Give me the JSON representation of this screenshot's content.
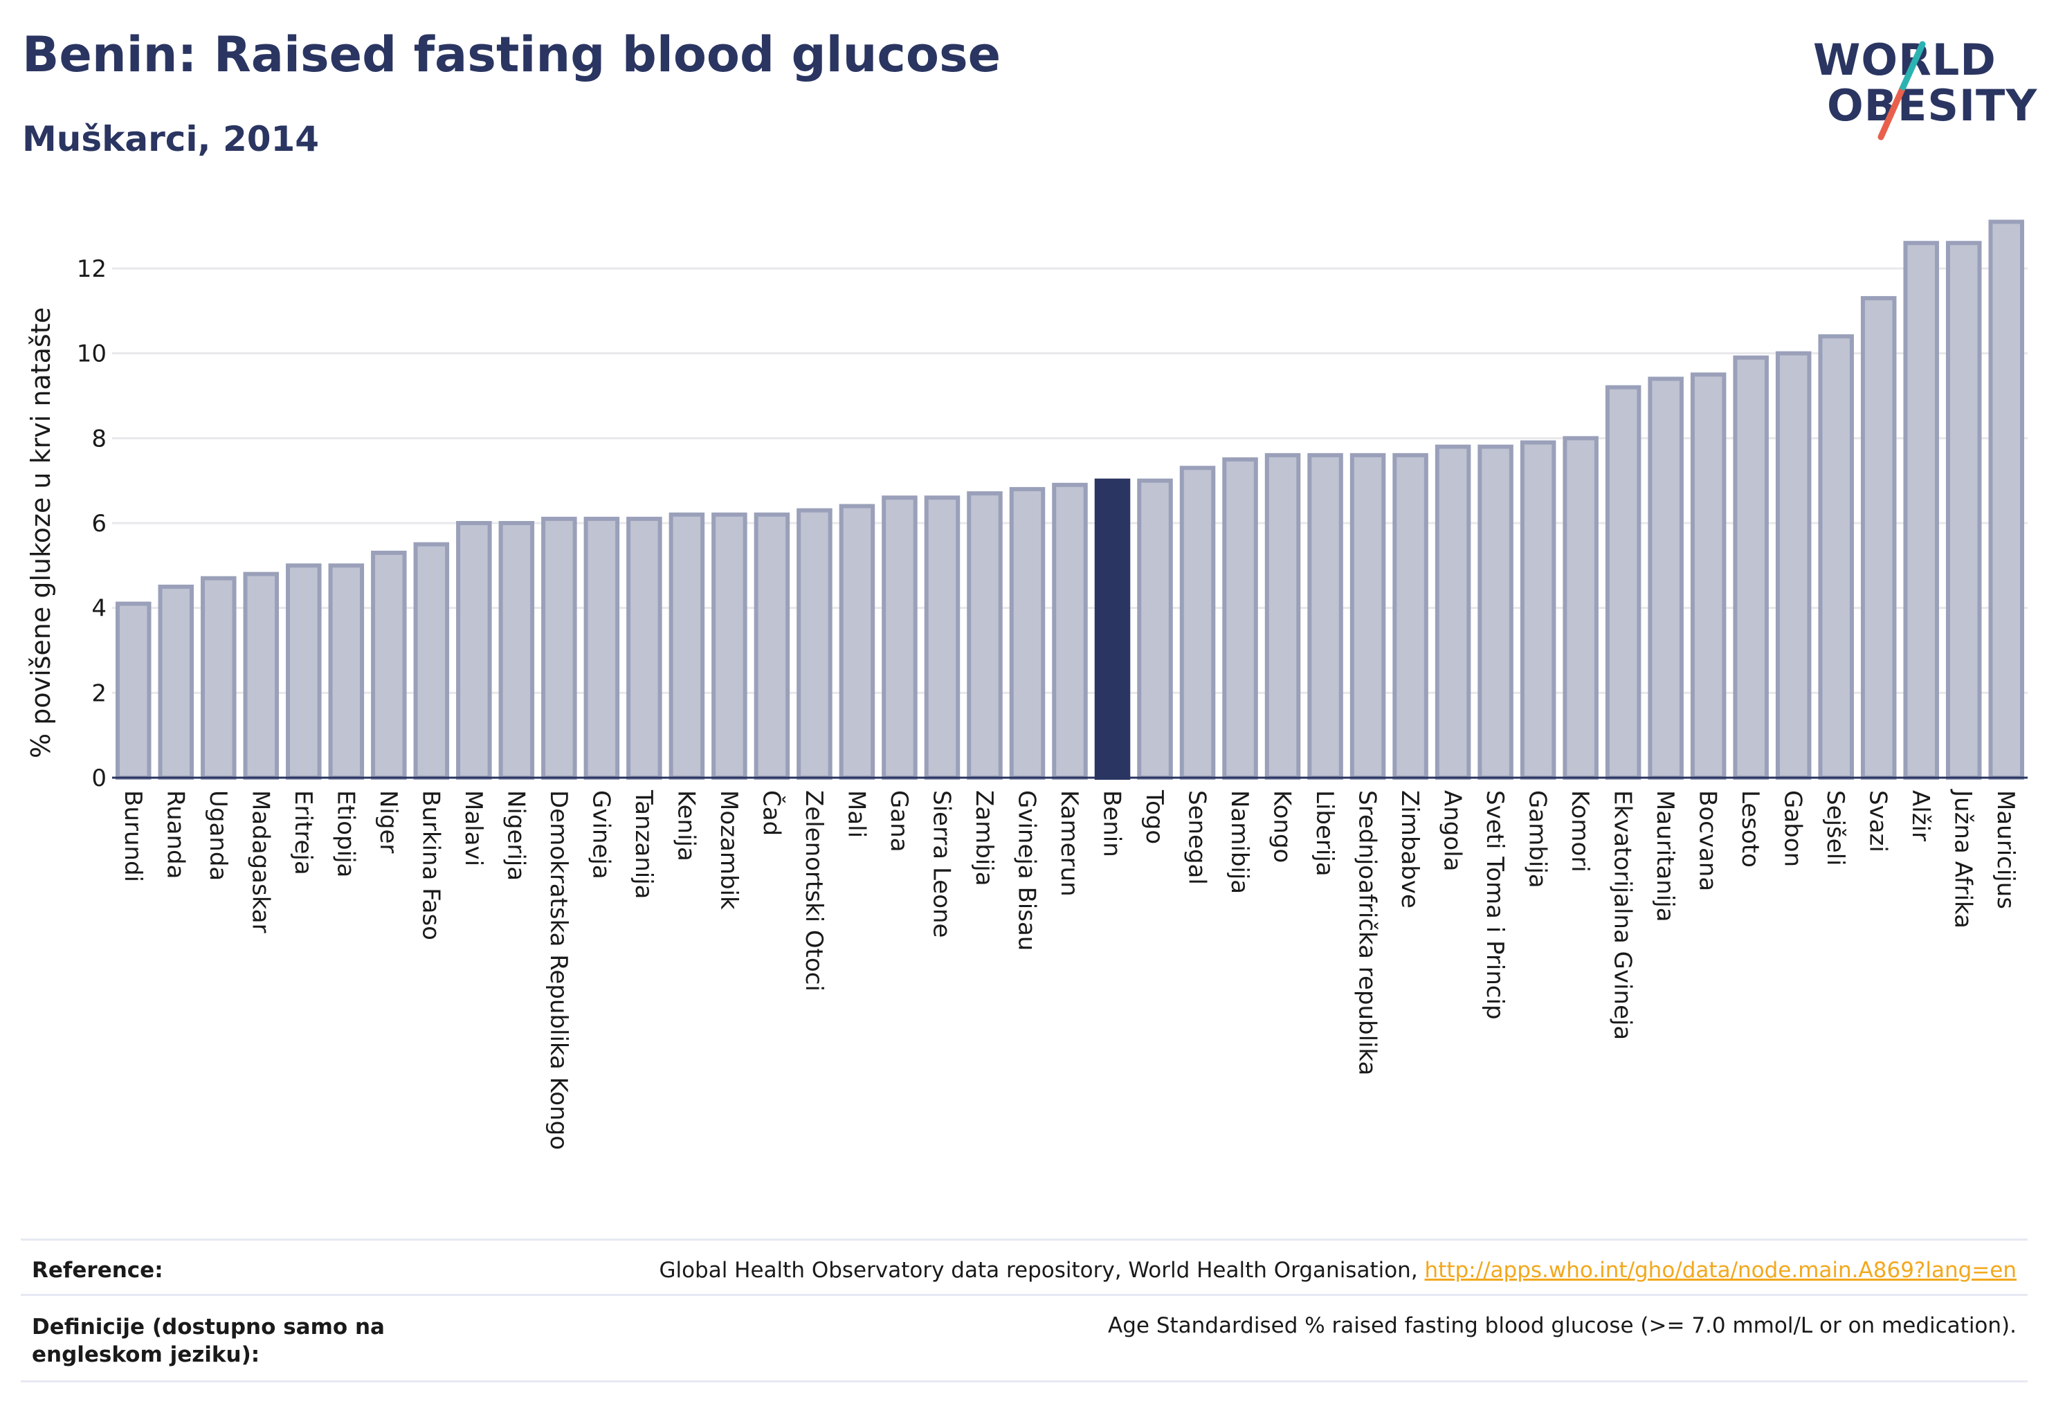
{
  "title": "Benin: Raised fasting blood glucose",
  "subtitle": "Muškarci, 2014",
  "logo": {
    "line1": "WORLD",
    "line2": "OBESITY",
    "accent_colors": [
      "#2bb3b1",
      "#e8604c"
    ]
  },
  "colors": {
    "bar": "#bfc3d2",
    "bar_stroke": "#9aa0b9",
    "highlight": "#2a3561",
    "grid": "#e8e8ec",
    "link": "#f2a81d"
  },
  "chart_data": {
    "type": "bar",
    "ylabel": "% povišene glukoze u krvi natašte",
    "ylim": [
      0,
      13.5
    ],
    "yticks": [
      0,
      2,
      4,
      6,
      8,
      10,
      12
    ],
    "grid": true,
    "highlight": "Benin",
    "categories": [
      "Burundi",
      "Ruanda",
      "Uganda",
      "Madagaskar",
      "Eritreja",
      "Etiopija",
      "Niger",
      "Burkina Faso",
      "Malavi",
      "Nigerija",
      "Demokratska Republika Kongo",
      "Gvineja",
      "Tanzanija",
      "Kenija",
      "Mozambik",
      "Čad",
      "Zelenortski Otoci",
      "Mali",
      "Gana",
      "Sierra Leone",
      "Zambija",
      "Gvineja Bisau",
      "Kamerun",
      "Benin",
      "Togo",
      "Senegal",
      "Namibija",
      "Kongo",
      "Liberija",
      "Srednjoafrička republika",
      "Zimbabve",
      "Angola",
      "Sveti Toma i Princip",
      "Gambija",
      "Komori",
      "Ekvatorijalna Gvineja",
      "Mauritanija",
      "Bocvana",
      "Lesoto",
      "Gabon",
      "Sejšeli",
      "Svazi",
      "Alžir",
      "Južna Afrika",
      "Mauricijus"
    ],
    "values": [
      4.1,
      4.5,
      4.7,
      4.8,
      5.0,
      5.0,
      5.3,
      5.5,
      6.0,
      6.0,
      6.1,
      6.1,
      6.1,
      6.2,
      6.2,
      6.2,
      6.3,
      6.4,
      6.6,
      6.6,
      6.7,
      6.8,
      6.9,
      7.0,
      7.0,
      7.3,
      7.5,
      7.6,
      7.6,
      7.6,
      7.6,
      7.8,
      7.8,
      7.9,
      8.0,
      9.2,
      9.4,
      9.5,
      9.9,
      10.0,
      10.4,
      11.3,
      12.6,
      12.6,
      13.1
    ]
  },
  "footer": {
    "reference_label": "Reference:",
    "reference_text": "Global Health Observatory data repository, World Health Organisation, ",
    "reference_link": "http://apps.who.int/gho/data/node.main.A869?lang=en",
    "definition_label": "Definicije (dostupno samo na engleskom jeziku):",
    "definition_text": "Age Standardised % raised fasting blood glucose (>= 7.0 mmol/L or on medication)."
  }
}
